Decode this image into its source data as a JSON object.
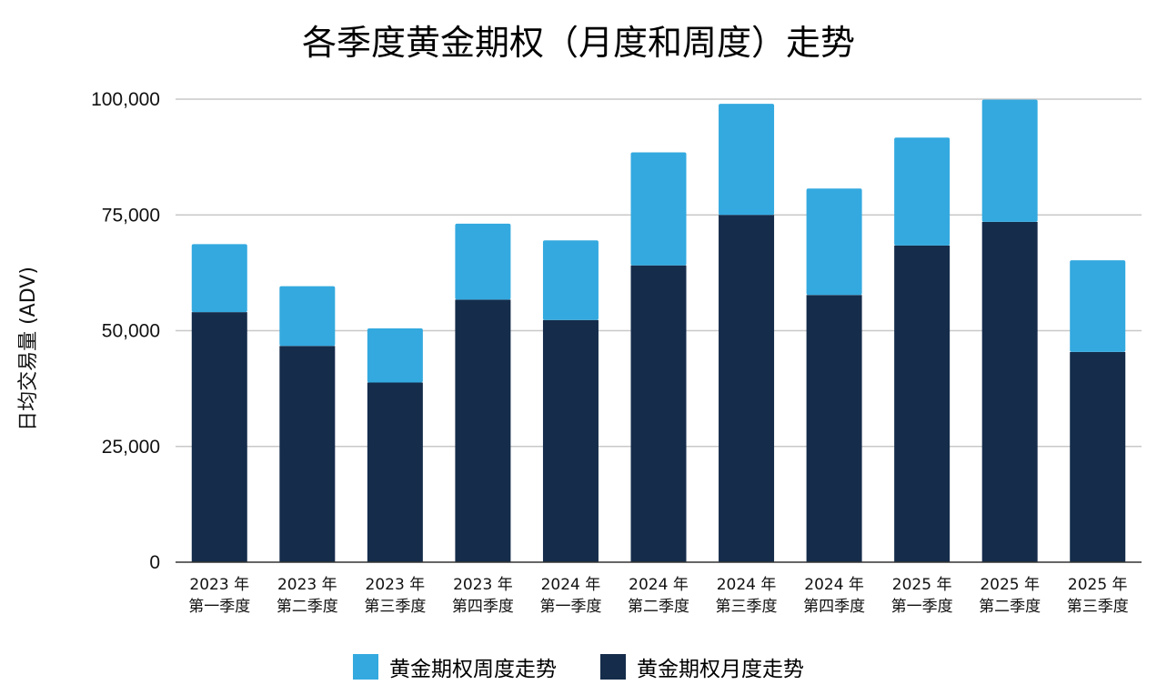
{
  "chart_data": {
    "type": "bar",
    "stacked": true,
    "title": "各季度黄金期权（月度和周度）走势",
    "ylabel": "日均交易量 (ADV)",
    "xlabel": "",
    "ylim": [
      0,
      100000
    ],
    "yticks": [
      0,
      25000,
      50000,
      75000,
      100000
    ],
    "ytick_labels": [
      "0",
      "25,000",
      "50,000",
      "75,000",
      "100,000"
    ],
    "grid": true,
    "legend_position": "bottom",
    "categories": [
      [
        "2023 年",
        "第一季度"
      ],
      [
        "2023 年",
        "第二季度"
      ],
      [
        "2023 年",
        "第三季度"
      ],
      [
        "2023 年",
        "第四季度"
      ],
      [
        "2024 年",
        "第一季度"
      ],
      [
        "2024 年",
        "第二季度"
      ],
      [
        "2024 年",
        "第三季度"
      ],
      [
        "2024 年",
        "第四季度"
      ],
      [
        "2025 年",
        "第一季度"
      ],
      [
        "2025 年",
        "第二季度"
      ],
      [
        "2025 年",
        "第三季度"
      ]
    ],
    "series": [
      {
        "name": "黄金期权月度走势",
        "color": "#152c4b",
        "values": [
          54000,
          46700,
          38800,
          56700,
          52300,
          64100,
          75000,
          57700,
          68400,
          73500,
          45400
        ]
      },
      {
        "name": "黄金期权周度走势",
        "color": "#33a9df",
        "values": [
          14700,
          12900,
          11700,
          16400,
          17200,
          24400,
          24000,
          23000,
          23300,
          26400,
          19800
        ]
      }
    ],
    "legend_order": [
      1,
      0
    ]
  }
}
